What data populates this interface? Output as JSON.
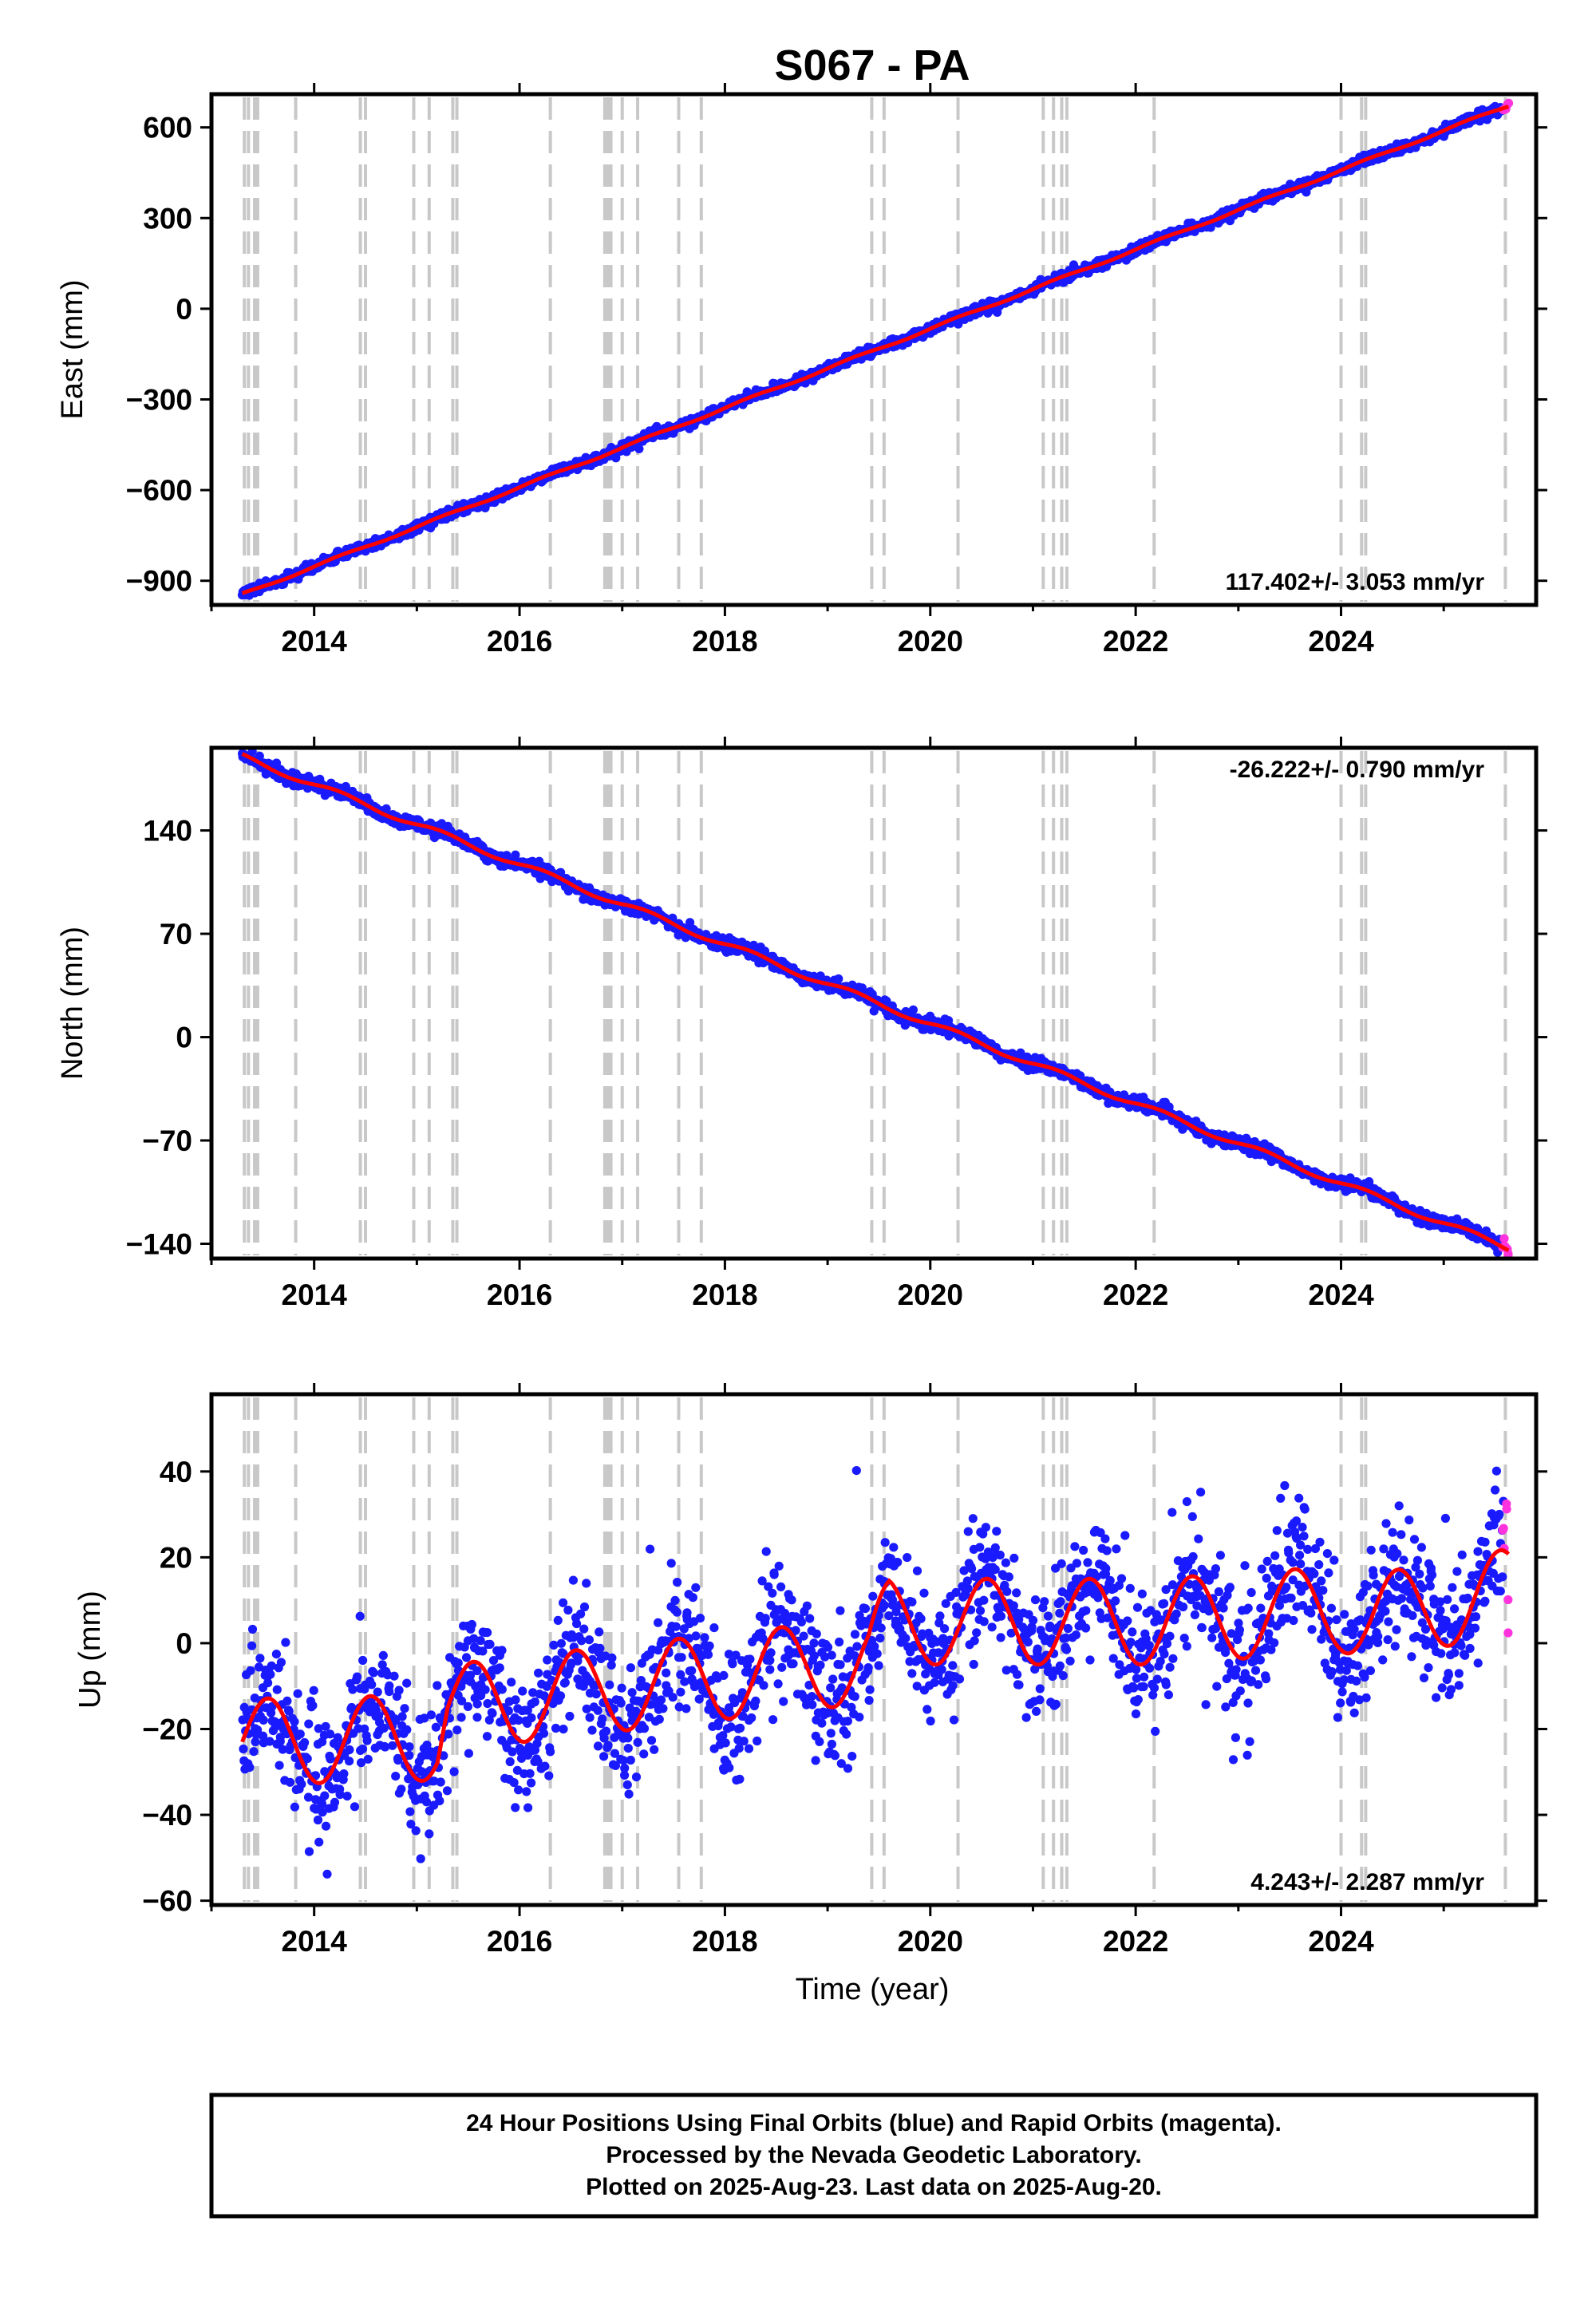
{
  "title": "S067 - PA",
  "colors": {
    "final_orbits": "#1a1aff",
    "rapid_orbits": "#ff33dd",
    "model": "#ff0000",
    "event_lines": "#c8c8c8"
  },
  "chart_data": [
    {
      "type": "scatter",
      "component": "east",
      "ylabel": "East (mm)",
      "xlim": [
        2013.0,
        2025.9
      ],
      "ylim": [
        -980,
        710
      ],
      "yticks": [
        600,
        300,
        0,
        -300,
        -600,
        -900
      ],
      "ytick_labels": [
        "600",
        "300",
        "0",
        "−300",
        "−600",
        "−900"
      ],
      "xticks": [
        2014,
        2016,
        2018,
        2020,
        2022,
        2024
      ],
      "xtick_labels": [
        "2014",
        "2016",
        "2018",
        "2020",
        "2022",
        "2024"
      ],
      "rate_label": "117.402+/- 3.053 mm/yr",
      "rate_position": "bottom-right",
      "start": [
        2013.3,
        -945
      ],
      "end": [
        2025.63,
        672
      ],
      "series": [
        {
          "role": "final_orbits",
          "x_start": 2013.3,
          "x_end": 2025.58,
          "noise_mm": 8
        },
        {
          "role": "rapid_orbits",
          "x_start": 2025.58,
          "x_end": 2025.63,
          "noise_mm": 8
        }
      ],
      "model": {
        "seasonal_amp_mm": 4
      }
    },
    {
      "type": "scatter",
      "component": "north",
      "ylabel": "North (mm)",
      "xlim": [
        2013.0,
        2025.9
      ],
      "ylim": [
        -150,
        196
      ],
      "yticks": [
        140,
        70,
        0,
        -70,
        -140
      ],
      "ytick_labels": [
        "140",
        "70",
        "0",
        "−70",
        "−140"
      ],
      "xticks": [
        2014,
        2016,
        2018,
        2020,
        2022,
        2024
      ],
      "xtick_labels": [
        "2014",
        "2016",
        "2018",
        "2020",
        "2022",
        "2024"
      ],
      "rate_label": "-26.222+/- 0.790 mm/yr",
      "rate_position": "top-right",
      "start": [
        2013.3,
        190
      ],
      "end": [
        2025.63,
        -143
      ],
      "series": [
        {
          "role": "final_orbits",
          "x_start": 2013.3,
          "x_end": 2025.58,
          "noise_mm": 2.2
        },
        {
          "role": "rapid_orbits",
          "x_start": 2025.58,
          "x_end": 2025.63,
          "noise_mm": 2.5
        }
      ],
      "model": {
        "seasonal_amp_mm": 2
      }
    },
    {
      "type": "scatter",
      "component": "up",
      "ylabel": "Up (mm)",
      "xlabel": "Time (year)",
      "xlim": [
        2013.0,
        2025.9
      ],
      "ylim": [
        -61,
        58
      ],
      "yticks": [
        40,
        20,
        0,
        -20,
        -40,
        -60
      ],
      "ytick_labels": [
        "40",
        "20",
        "0",
        "−20",
        "−40",
        "−60"
      ],
      "xticks": [
        2014,
        2016,
        2018,
        2020,
        2022,
        2024
      ],
      "xtick_labels": [
        "2014",
        "2016",
        "2018",
        "2020",
        "2022",
        "2024"
      ],
      "rate_label": "4.243+/- 2.287 mm/yr",
      "rate_position": "bottom-right",
      "series": [
        {
          "role": "final_orbits",
          "x_start": 2013.3,
          "x_end": 2025.58,
          "noise_mm": 7.5
        },
        {
          "role": "rapid_orbits",
          "x_start": 2025.58,
          "x_end": 2025.63,
          "noise_mm": 10
        }
      ],
      "model": {
        "seasonal_amp_mm": 10,
        "peak_phase_year": 0.55,
        "step_points": [
          [
            2013.3,
            -23
          ],
          [
            2015.2,
            -22
          ],
          [
            2015.3,
            -15
          ],
          [
            2019.4,
            -4
          ],
          [
            2019.6,
            5
          ],
          [
            2022.2,
            5
          ],
          [
            2024.0,
            8
          ],
          [
            2024.3,
            6
          ],
          [
            2025.63,
            12
          ]
        ]
      }
    }
  ],
  "event_lines_years": [
    2013.32,
    2013.36,
    2013.42,
    2013.45,
    2013.82,
    2014.45,
    2014.5,
    2014.97,
    2015.12,
    2015.35,
    2015.39,
    2016.3,
    2016.83,
    2016.86,
    2016.89,
    2017.0,
    2017.15,
    2017.55,
    2017.77,
    2019.43,
    2019.55,
    2020.27,
    2021.1,
    2021.2,
    2021.28,
    2021.33,
    2022.18,
    2024.0,
    2024.2,
    2024.24,
    2025.6
  ],
  "footer": {
    "line1": "24 Hour Positions Using Final Orbits (blue) and Rapid Orbits (magenta).",
    "line2": "Processed by the Nevada Geodetic Laboratory.",
    "line3": "Plotted on 2025-Aug-23. Last data on 2025-Aug-20."
  }
}
